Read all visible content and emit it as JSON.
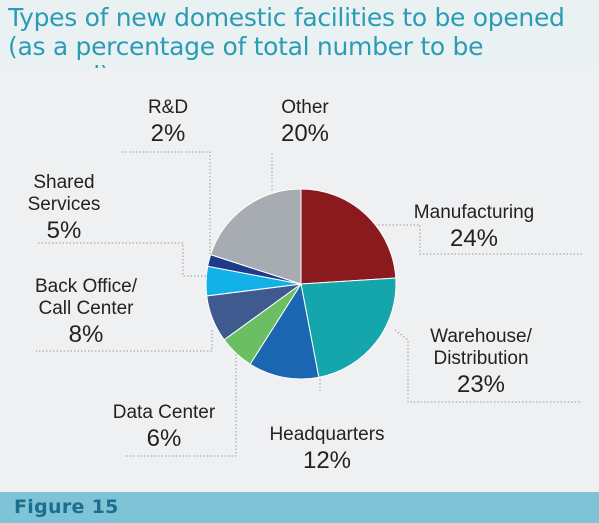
{
  "header": {
    "title_line1": "Types of new domestic facilities to be opened",
    "title_line2": "(as a percentage of total number to be opened):"
  },
  "footer": {
    "figure_label": "Figure 15"
  },
  "chart_data": {
    "type": "pie",
    "title": "Types of new domestic facilities to be opened (as a percentage of total number to be opened):",
    "slices": [
      {
        "name_lines": [
          "Manufacturing"
        ],
        "value": 24,
        "value_label": "24%",
        "color": "#8b1a1f"
      },
      {
        "name_lines": [
          "Warehouse/",
          "Distribution"
        ],
        "value": 23,
        "value_label": "23%",
        "color": "#14a6ac"
      },
      {
        "name_lines": [
          "Headquarters"
        ],
        "value": 12,
        "value_label": "12%",
        "color": "#1b66b0"
      },
      {
        "name_lines": [
          "Data Center"
        ],
        "value": 6,
        "value_label": "6%",
        "color": "#6bbf62"
      },
      {
        "name_lines": [
          "Back Office/",
          "Call Center"
        ],
        "value": 8,
        "value_label": "8%",
        "color": "#3e5a8f"
      },
      {
        "name_lines": [
          "Shared",
          "Services"
        ],
        "value": 5,
        "value_label": "5%",
        "color": "#12b2e8"
      },
      {
        "name_lines": [
          "R&D"
        ],
        "value": 2,
        "value_label": "2%",
        "color": "#1e3a8a"
      },
      {
        "name_lines": [
          "Other"
        ],
        "value": 20,
        "value_label": "20%",
        "color": "#a7acb2"
      }
    ],
    "start_angle_deg": 0,
    "direction": "clockwise"
  }
}
